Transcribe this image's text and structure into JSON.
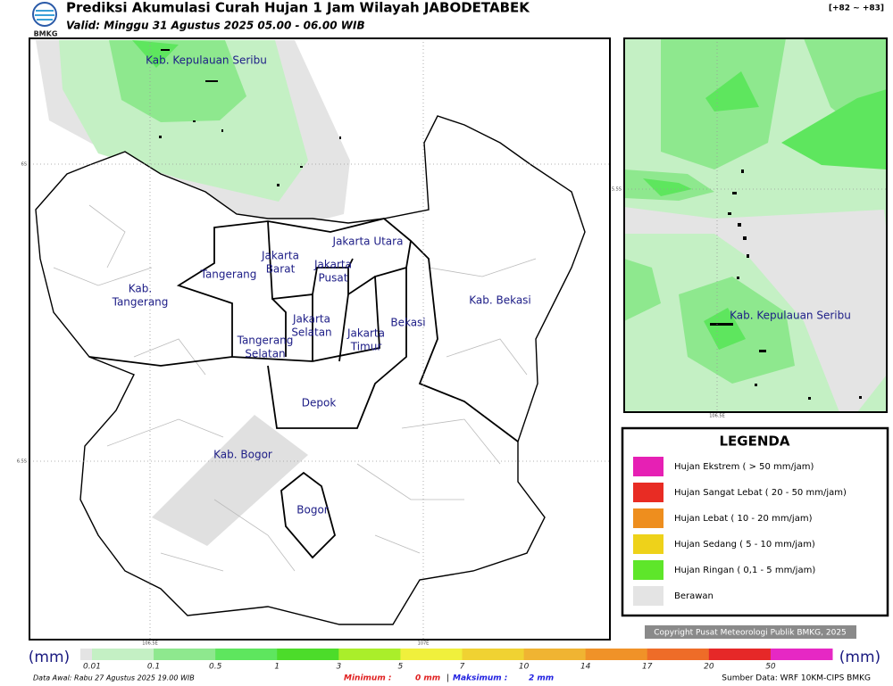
{
  "header": {
    "logo_text": "BMKG",
    "title": "Prediksi Akumulasi Curah Hujan 1 Jam Wilayah JABODETABEK",
    "subtitle": "Valid: Minggu 31 Agustus 2025 05.00 - 06.00 WIB",
    "code_range": "[+82 ~ +83]"
  },
  "map": {
    "coords": [
      "6S",
      "6.5S",
      "106.5E",
      "107E"
    ],
    "labels": [
      {
        "lines": [
          "Kab. Kepulauan Seribu"
        ]
      },
      {
        "lines": [
          "Jakarta Utara"
        ]
      },
      {
        "lines": [
          "Jakarta",
          "Barat"
        ]
      },
      {
        "lines": [
          "Jakarta",
          "Pusat"
        ]
      },
      {
        "lines": [
          "Tangerang"
        ]
      },
      {
        "lines": [
          "Kab.",
          "Tangerang"
        ]
      },
      {
        "lines": [
          "Jakarta",
          "Selatan"
        ]
      },
      {
        "lines": [
          "Jakarta",
          "Timur"
        ]
      },
      {
        "lines": [
          "Bekasi"
        ]
      },
      {
        "lines": [
          "Kab. Bekasi"
        ]
      },
      {
        "lines": [
          "Tangerang",
          "Selatan"
        ]
      },
      {
        "lines": [
          "Depok"
        ]
      },
      {
        "lines": [
          "Kab. Bogor"
        ]
      },
      {
        "lines": [
          "Bogor"
        ]
      }
    ]
  },
  "inset": {
    "coords": [
      "5.5S",
      "106.5E"
    ],
    "labels": [
      {
        "lines": [
          "Kab. Kepulauan Seribu"
        ]
      }
    ]
  },
  "legend": {
    "title": "LEGENDA",
    "items": [
      {
        "label": "Hujan Ekstrem ( > 50 mm/jam)",
        "color": "#e620b4"
      },
      {
        "label": "Hujan Sangat Lebat ( 20 - 50 mm/jam)",
        "color": "#e82c24"
      },
      {
        "label": "Hujan Lebat ( 10 - 20 mm/jam)",
        "color": "#ee8e1e"
      },
      {
        "label": "Hujan Sedang ( 5 - 10 mm/jam)",
        "color": "#eed21a"
      },
      {
        "label": "Hujan Ringan ( 0,1 - 5 mm/jam)",
        "color": "#5ee62a"
      },
      {
        "label": "Berawan",
        "color": "#e4e4e4"
      }
    ]
  },
  "colorbar": {
    "unit_left": "(mm)",
    "unit_right": "(mm)",
    "ticks": [
      "0.01",
      "0.1",
      "0.5",
      "1",
      "3",
      "5",
      "7",
      "10",
      "14",
      "17",
      "20",
      "50"
    ],
    "colors": [
      "#e4e4e4",
      "#c4f0c4",
      "#8ee88e",
      "#5ee65e",
      "#4cdc2a",
      "#aaee2a",
      "#f0f03c",
      "#f0d232",
      "#f0b432",
      "#f09228",
      "#ee6c28",
      "#e62828",
      "#e628c4"
    ]
  },
  "copyright": "Copyright Pusat Meteorologi Publik BMKG, 2025",
  "footer": {
    "data_awal": "Data Awal: Rabu 27 Agustus 2025 19.00 WIB",
    "minimum_label": "Minimum :",
    "minimum_value": "0 mm",
    "separator": "|",
    "maksimum_label": "Maksimum :",
    "maksimum_value": "2 mm",
    "source": "Sumber Data: WRF 10KM-CIPS BMKG"
  }
}
